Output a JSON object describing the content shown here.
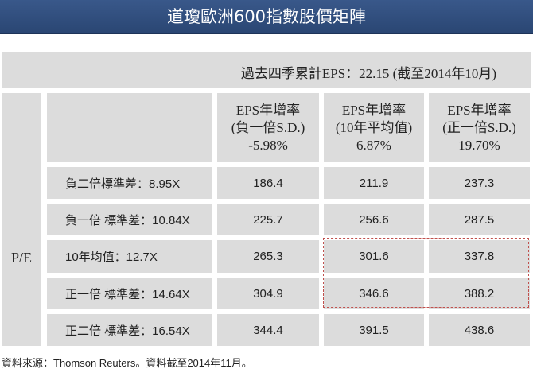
{
  "title": "道瓊歐洲600指數股價矩陣",
  "eps_line": "過去四季累計EPS：22.15 (截至2014年10月)",
  "row_header": "P/E",
  "columns": [
    {
      "line1": "EPS年增率",
      "line2": "(負一倍S.D.)",
      "line3": "-5.98%"
    },
    {
      "line1": "EPS年增率",
      "line2": "(10年平均值)",
      "line3": "6.87%"
    },
    {
      "line1": "EPS年增率",
      "line2": "(正一倍S.D.)",
      "line3": "19.70%"
    }
  ],
  "rows": [
    {
      "label": "負二倍標準差：8.95X",
      "values": [
        "186.4",
        "211.9",
        "237.3"
      ]
    },
    {
      "label": "負一倍 標準差：10.84X",
      "values": [
        "225.7",
        "256.6",
        "287.5"
      ]
    },
    {
      "label": "10年均值：12.7X",
      "values": [
        "265.3",
        "301.6",
        "337.8"
      ]
    },
    {
      "label": "正一倍 標準差：14.64X",
      "values": [
        "304.9",
        "346.6",
        "388.2"
      ]
    },
    {
      "label": "正二倍 標準差：16.54X",
      "values": [
        "344.4",
        "391.5",
        "438.6"
      ]
    }
  ],
  "footer": "資料來源：Thomson Reuters。資料截至2014年11月。",
  "colors": {
    "title_bg": "#2f4d7d",
    "cell_bg": "#dcdcdc",
    "highlight_border": "#c0504d"
  }
}
